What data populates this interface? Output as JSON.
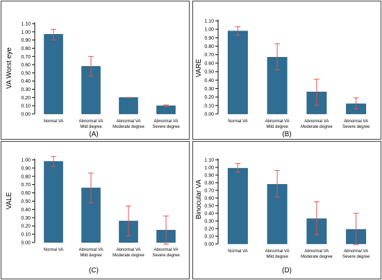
{
  "colors": {
    "bar": "#2f6d92",
    "bar_edge": "#1f4f6d",
    "error": "#e0504f",
    "frame": "#3a3a3a",
    "axis": "#000000"
  },
  "chart_data": [
    {
      "type": "bar",
      "panel_label": "(A)",
      "ylabel": "VA  Worst eye",
      "ylim": [
        0,
        1.1
      ],
      "yticks": [
        "0.00",
        "0.10",
        "0.20",
        "0.30",
        "0.40",
        "0.50",
        "0.60",
        "0.70",
        "0.80",
        "0.90",
        "1.00",
        "1.10"
      ],
      "categories": [
        [
          "Normal VA"
        ],
        [
          "Abnormal VA",
          "Mild degree"
        ],
        [
          "Abnormal VA",
          "Moderate degree"
        ],
        [
          "Abnormal VA",
          "Severe degree"
        ]
      ],
      "values": [
        0.97,
        0.58,
        0.2,
        0.1
      ],
      "err_low": [
        0.9,
        0.46,
        0.2,
        0.09
      ],
      "err_high": [
        1.03,
        0.7,
        0.2,
        0.11
      ]
    },
    {
      "type": "bar",
      "panel_label": "(B)",
      "ylabel": "VARE",
      "ylim": [
        0,
        1.1
      ],
      "yticks": [
        "0.00",
        "0.10",
        "0.20",
        "0.30",
        "0.40",
        "0.50",
        "0.60",
        "0.70",
        "0.80",
        "0.90",
        "1.00",
        "1.10"
      ],
      "categories": [
        [
          "Normal VA"
        ],
        [
          "Abnormal VA",
          "Mild degree"
        ],
        [
          "Abnormal VA",
          "Moderate degree"
        ],
        [
          "Abnormal VA",
          "Severe degree"
        ]
      ],
      "values": [
        0.98,
        0.67,
        0.26,
        0.12
      ],
      "err_low": [
        0.93,
        0.52,
        0.1,
        0.06
      ],
      "err_high": [
        1.03,
        0.83,
        0.41,
        0.19
      ]
    },
    {
      "type": "bar",
      "panel_label": "(C)",
      "ylabel": "VALE",
      "ylim": [
        0,
        1.0
      ],
      "yticks": [
        "0.00",
        "0.10",
        "0.20",
        "0.30",
        "0.40",
        "0.50",
        "0.60",
        "0.70",
        "0.80",
        "0.90",
        "1.00"
      ],
      "categories": [
        [
          "Normal VA"
        ],
        [
          "Abnormal VA",
          "Mild degree"
        ],
        [
          "Abnormal VA",
          "Moderate degree"
        ],
        [
          "Abnormal VA",
          "Severe degree"
        ]
      ],
      "values": [
        0.98,
        0.66,
        0.26,
        0.15
      ],
      "err_low": [
        0.92,
        0.48,
        0.08,
        -0.02
      ],
      "err_high": [
        1.04,
        0.84,
        0.44,
        0.32
      ]
    },
    {
      "type": "bar",
      "panel_label": "(D)",
      "ylabel": "Binocular VA",
      "ylim": [
        0,
        1.1
      ],
      "yticks": [
        "0.00",
        "0.10",
        "0.20",
        "0.30",
        "0.40",
        "0.50",
        "0.60",
        "0.70",
        "0.80",
        "0.90",
        "1.00",
        "1.10"
      ],
      "categories": [
        [
          "Normal VA"
        ],
        [
          "Abnormal VA",
          "Mild degree"
        ],
        [
          "Abnormal VA",
          "Moderate degree"
        ],
        [
          "Abnormal VA",
          "Severe degree"
        ]
      ],
      "values": [
        0.99,
        0.78,
        0.33,
        0.19
      ],
      "err_low": [
        0.94,
        0.61,
        0.12,
        -0.01
      ],
      "err_high": [
        1.05,
        0.96,
        0.55,
        0.4
      ]
    }
  ]
}
